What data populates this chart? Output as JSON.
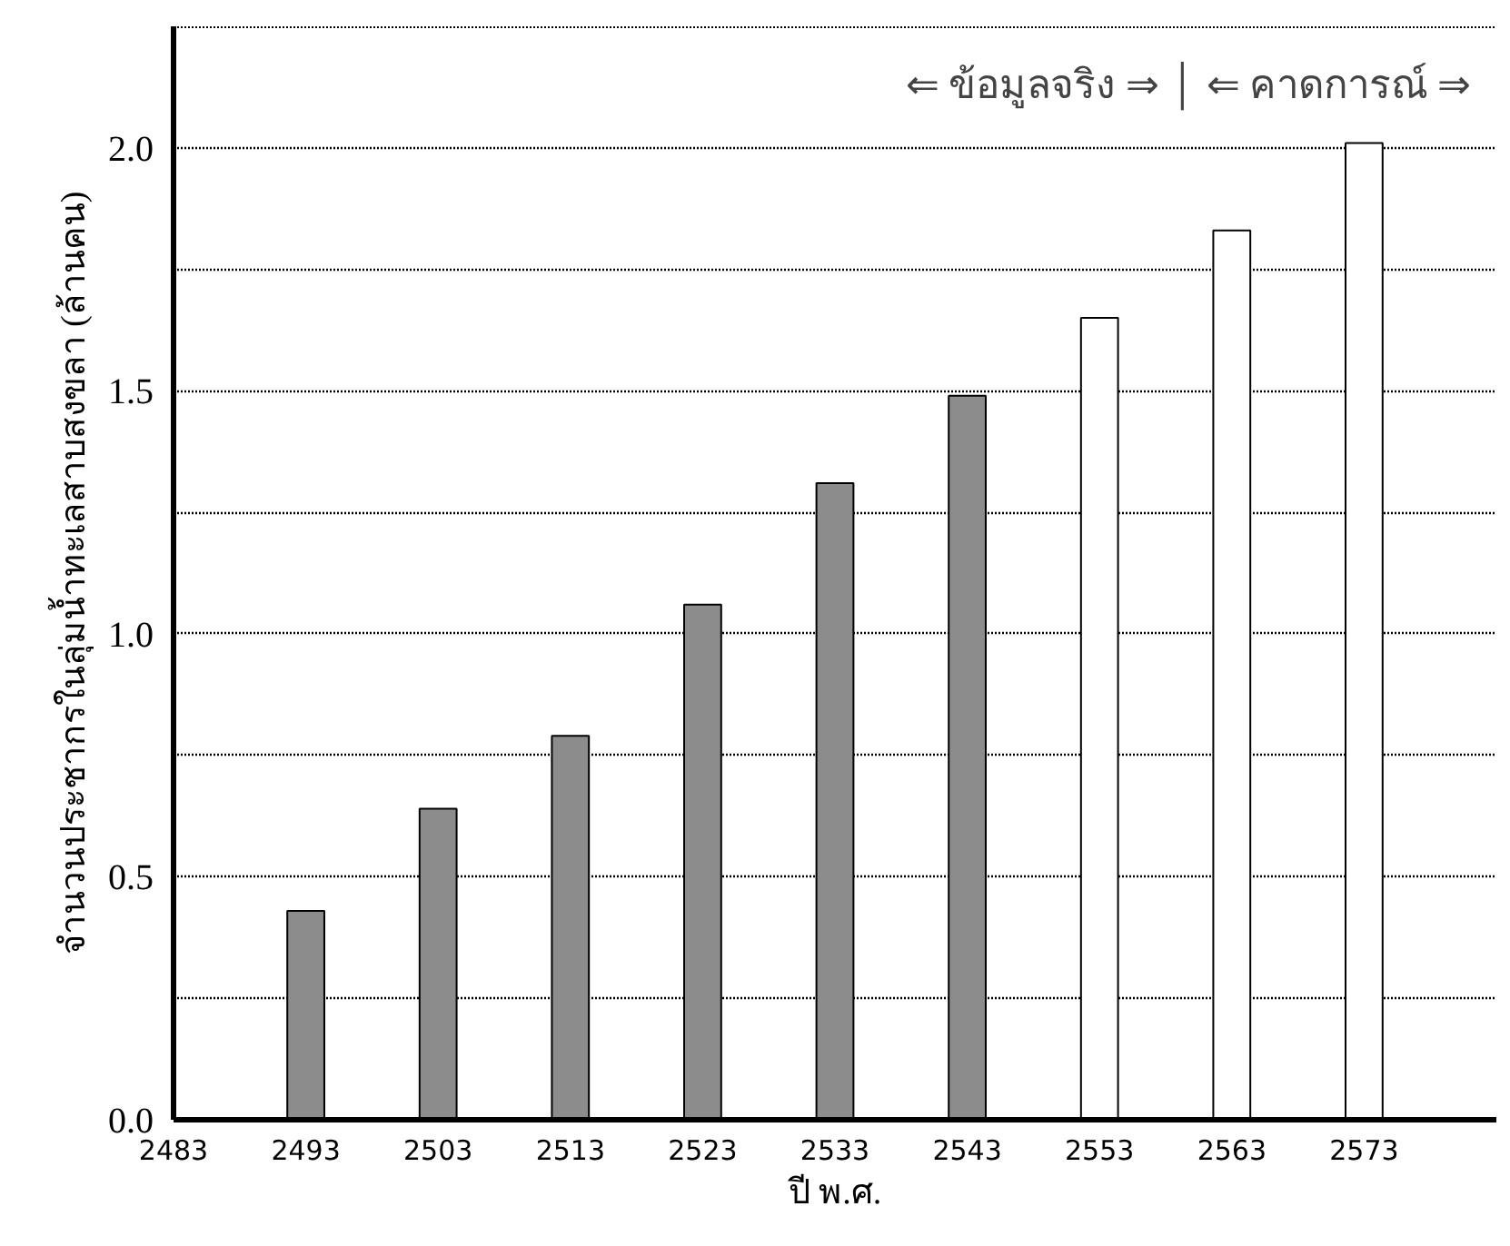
{
  "chart_data": {
    "type": "bar",
    "xlabel": "ปี พ.ศ.",
    "ylabel": "จำนวนประชากรในลุ่มน้ำทะเลสาบสงขลา (ล้านคน)",
    "annotations": [
      "⇐ ข้อมูลจริง ⇒ │ ⇐ คาดการณ์ ⇒"
    ],
    "series": [
      {
        "color": "#8c8c8c",
        "x": [
          2493,
          2503,
          2513,
          2523,
          2533,
          2543
        ],
        "values": [
          0.43,
          0.64,
          0.79,
          1.06,
          1.31,
          1.49
        ]
      },
      {
        "color": "#ffffff",
        "x": [
          2553,
          2563,
          2573
        ],
        "values": [
          1.65,
          1.83,
          2.01
        ]
      }
    ],
    "xlim": [
      2483,
      2583
    ],
    "xticks": [
      2483,
      2493,
      2503,
      2513,
      2523,
      2533,
      2543,
      2553,
      2563,
      2573
    ],
    "ylim": [
      0,
      2.25
    ],
    "yticks": [
      {
        "value": 0,
        "label": "0.0"
      },
      {
        "value": 0.25,
        "label": null
      },
      {
        "value": 0.5,
        "label": "0.5"
      },
      {
        "value": 0.75,
        "label": null
      },
      {
        "value": 1,
        "label": "1.0"
      },
      {
        "value": 1.25,
        "label": null
      },
      {
        "value": 1.5,
        "label": "1.5"
      },
      {
        "value": 1.75,
        "label": null
      },
      {
        "value": 2,
        "label": "2.0"
      },
      {
        "value": 2.25,
        "label": null
      }
    ],
    "grid": "y"
  }
}
